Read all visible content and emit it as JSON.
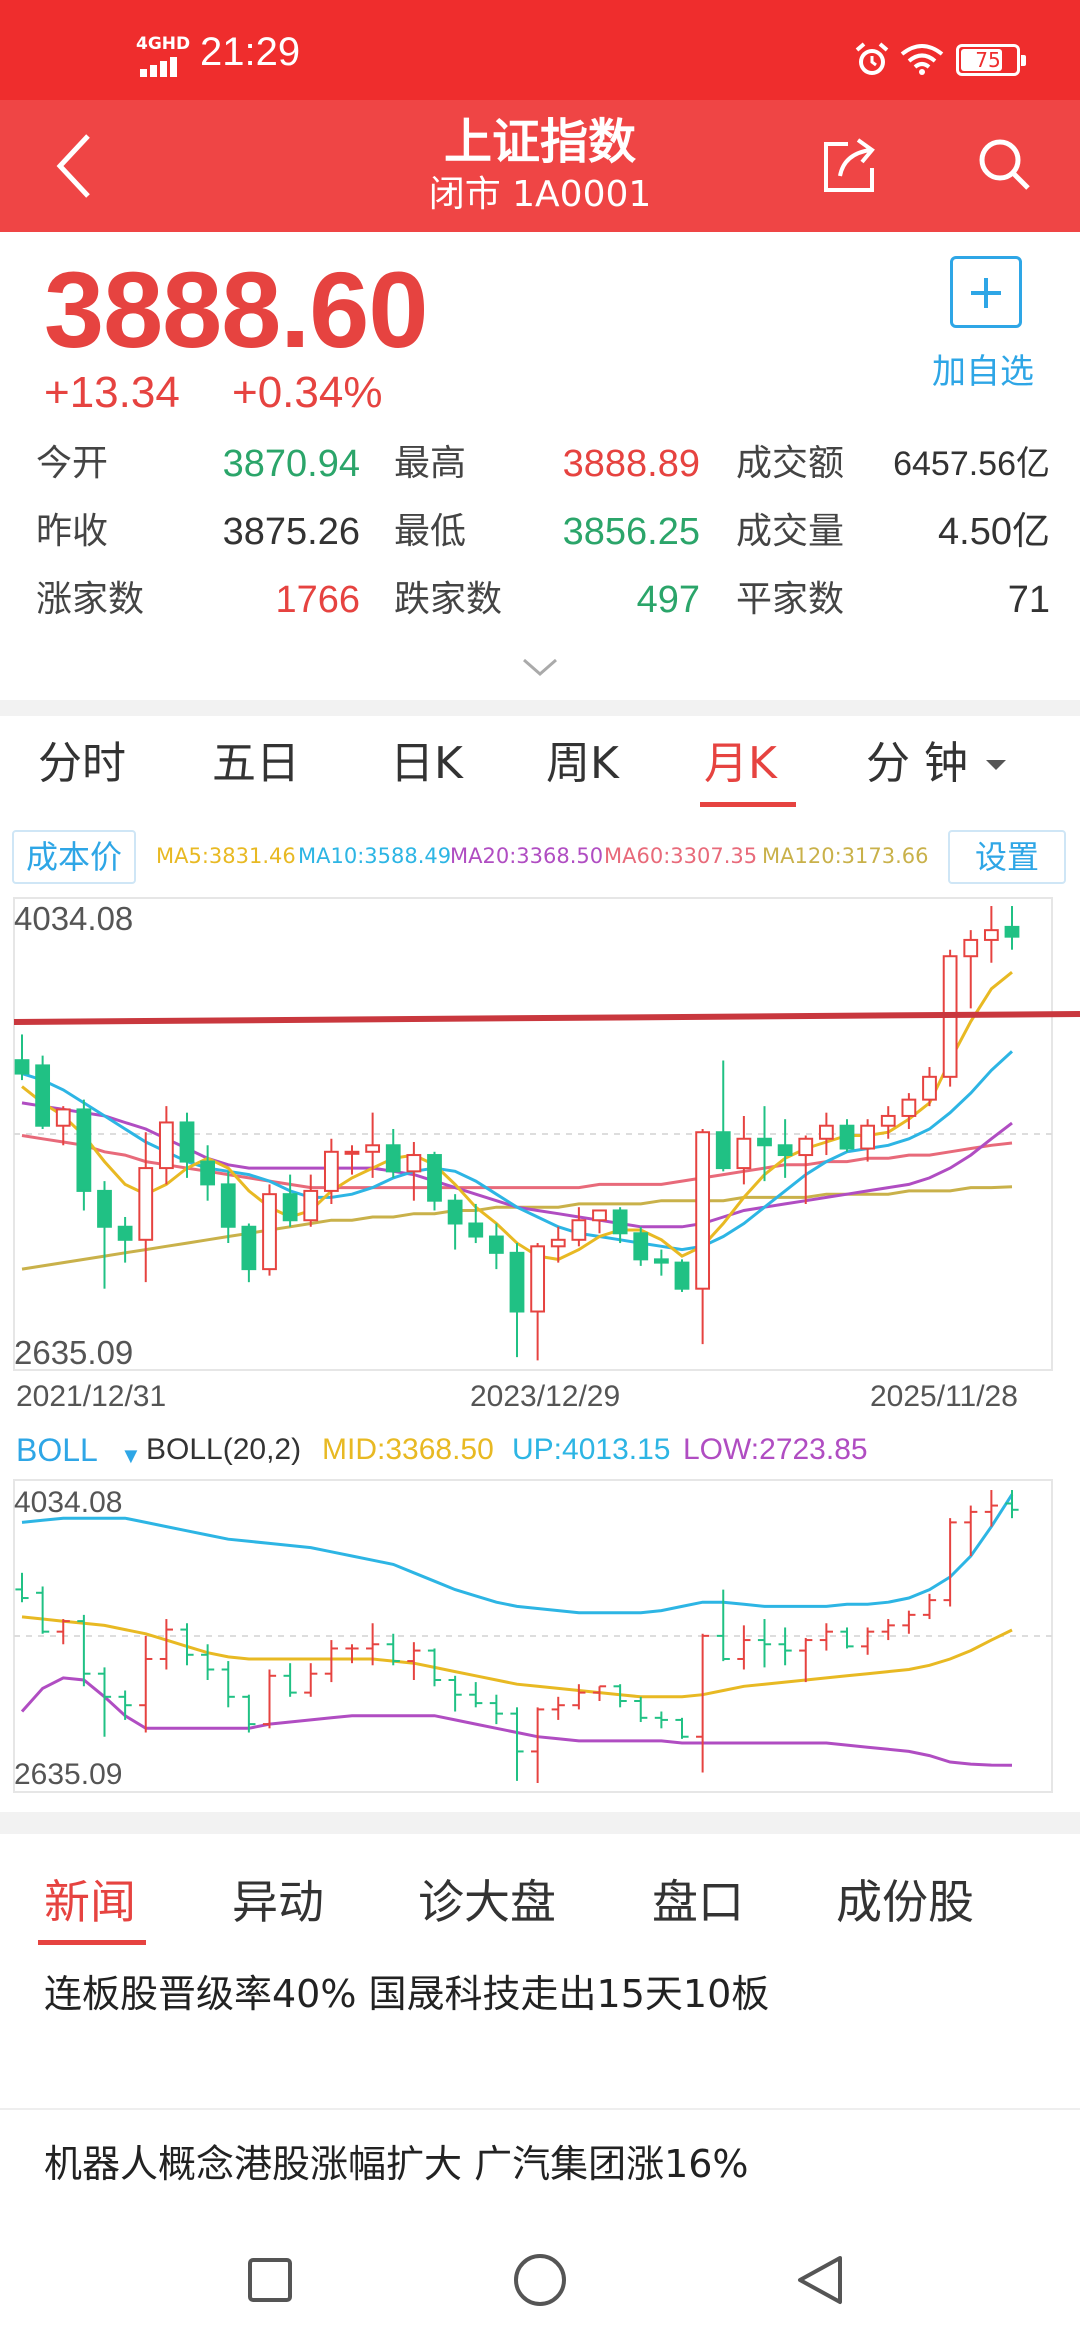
{
  "status_bar": {
    "network": "4GHD",
    "time": "21:29",
    "battery": "75",
    "battery_level": 0.75
  },
  "header": {
    "title": "上证指数",
    "subtitle": "闭市 1A0001"
  },
  "quote": {
    "price": "3888.60",
    "change": "+13.34",
    "change_pct": "+0.34%",
    "add_watch_label": "加自选",
    "stats": [
      [
        {
          "label": "今开",
          "value": "3870.94",
          "color": "green"
        },
        {
          "label": "最高",
          "value": "3888.89",
          "color": "red"
        },
        {
          "label": "成交额",
          "value": "6457.56亿",
          "color": "dark"
        }
      ],
      [
        {
          "label": "昨收",
          "value": "3875.26",
          "color": "dark"
        },
        {
          "label": "最低",
          "value": "3856.25",
          "color": "green"
        },
        {
          "label": "成交量",
          "value": "4.50亿",
          "color": "dark"
        }
      ],
      [
        {
          "label": "涨家数",
          "value": "1766",
          "color": "red"
        },
        {
          "label": "跌家数",
          "value": "497",
          "color": "green"
        },
        {
          "label": "平家数",
          "value": "71",
          "color": "dark"
        }
      ]
    ]
  },
  "period_tabs": [
    "分时",
    "五日",
    "日K",
    "周K",
    "月K",
    "分 钟"
  ],
  "active_period": "月K",
  "ma_row": {
    "cost_button": "成本价",
    "settings_button": "设置",
    "ma": [
      {
        "text": "MA5:3831.46",
        "color": "#e8b923"
      },
      {
        "text": "MA10:3588.49",
        "color": "#2db5e4"
      },
      {
        "text": "MA20:3368.50",
        "color": "#b04dc2"
      },
      {
        "text": "MA60:3307.35",
        "color": "#e86a7a"
      },
      {
        "text": "MA120:3173.66",
        "color": "#c9b14a"
      }
    ]
  },
  "kline_chart": {
    "y_max_label": "4034.08",
    "y_min_label": "2635.09",
    "x_labels": [
      "2021/12/31",
      "2023/12/29",
      "2025/11/28"
    ]
  },
  "boll_row": {
    "name": "BOLL",
    "params": "BOLL(20,2)",
    "mid": "MID:3368.50",
    "up": "UP:4013.15",
    "low": "LOW:2723.85"
  },
  "boll_chart": {
    "y_max_label": "4034.08",
    "y_min_label": "2635.09"
  },
  "news_tabs": [
    "新闻",
    "异动",
    "诊大盘",
    "盘口",
    "成份股"
  ],
  "active_news_tab": "新闻",
  "news": [
    "连板股晋级率40% 国晟科技走出15天10板",
    "机器人概念港股涨幅扩大 广汽集团涨16%"
  ],
  "chart_data": {
    "type": "candlestick",
    "title": "",
    "y_range": [
      2635.09,
      4034.08
    ],
    "x_ticks": [
      "2021/12/31",
      "2023/12/29",
      "2025/11/28"
    ],
    "ma_values": {
      "MA5": 3831.46,
      "MA10": 3588.49,
      "MA20": 3368.5,
      "MA60": 3307.35,
      "MA120": 3173.66
    },
    "boll": {
      "params": "20,2",
      "mid": 3368.5,
      "up": 4013.15,
      "low": 2723.85
    },
    "candles": [
      {
        "o": 3561,
        "h": 3640,
        "l": 3500,
        "c": 3520
      },
      {
        "o": 3545,
        "h": 3575,
        "l": 3350,
        "c": 3360
      },
      {
        "o": 3360,
        "h": 3420,
        "l": 3300,
        "c": 3410
      },
      {
        "o": 3410,
        "h": 3440,
        "l": 3100,
        "c": 3160
      },
      {
        "o": 3160,
        "h": 3190,
        "l": 2860,
        "c": 3050
      },
      {
        "o": 3050,
        "h": 3080,
        "l": 2940,
        "c": 3010
      },
      {
        "o": 3010,
        "h": 3340,
        "l": 2880,
        "c": 3230
      },
      {
        "o": 3230,
        "h": 3420,
        "l": 3180,
        "c": 3370
      },
      {
        "o": 3370,
        "h": 3400,
        "l": 3200,
        "c": 3250
      },
      {
        "o": 3250,
        "h": 3300,
        "l": 3130,
        "c": 3180
      },
      {
        "o": 3180,
        "h": 3220,
        "l": 3000,
        "c": 3050
      },
      {
        "o": 3050,
        "h": 3060,
        "l": 2880,
        "c": 2920
      },
      {
        "o": 2920,
        "h": 3180,
        "l": 2900,
        "c": 3150
      },
      {
        "o": 3150,
        "h": 3210,
        "l": 3050,
        "c": 3070
      },
      {
        "o": 3070,
        "h": 3210,
        "l": 3050,
        "c": 3160
      },
      {
        "o": 3160,
        "h": 3320,
        "l": 3120,
        "c": 3280
      },
      {
        "o": 3280,
        "h": 3300,
        "l": 3210,
        "c": 3280
      },
      {
        "o": 3280,
        "h": 3400,
        "l": 3200,
        "c": 3300
      },
      {
        "o": 3300,
        "h": 3350,
        "l": 3200,
        "c": 3220
      },
      {
        "o": 3220,
        "h": 3310,
        "l": 3130,
        "c": 3270
      },
      {
        "o": 3270,
        "h": 3280,
        "l": 3100,
        "c": 3130
      },
      {
        "o": 3130,
        "h": 3150,
        "l": 2980,
        "c": 3060
      },
      {
        "o": 3060,
        "h": 3120,
        "l": 3000,
        "c": 3020
      },
      {
        "o": 3020,
        "h": 3060,
        "l": 2920,
        "c": 2970
      },
      {
        "o": 2970,
        "h": 3000,
        "l": 2650,
        "c": 2790
      },
      {
        "o": 2790,
        "h": 3000,
        "l": 2640,
        "c": 2990
      },
      {
        "o": 2990,
        "h": 3050,
        "l": 2940,
        "c": 3010
      },
      {
        "o": 3010,
        "h": 3110,
        "l": 2990,
        "c": 3070
      },
      {
        "o": 3070,
        "h": 3100,
        "l": 3030,
        "c": 3100
      },
      {
        "o": 3100,
        "h": 3110,
        "l": 3000,
        "c": 3030
      },
      {
        "o": 3030,
        "h": 3050,
        "l": 2930,
        "c": 2950
      },
      {
        "o": 2950,
        "h": 2980,
        "l": 2900,
        "c": 2940
      },
      {
        "o": 2940,
        "h": 2950,
        "l": 2850,
        "c": 2860
      },
      {
        "o": 2860,
        "h": 3350,
        "l": 2690,
        "c": 3340
      },
      {
        "o": 3340,
        "h": 3560,
        "l": 3220,
        "c": 3230
      },
      {
        "o": 3230,
        "h": 3390,
        "l": 3180,
        "c": 3320
      },
      {
        "o": 3320,
        "h": 3420,
        "l": 3190,
        "c": 3300
      },
      {
        "o": 3300,
        "h": 3380,
        "l": 3200,
        "c": 3270
      },
      {
        "o": 3270,
        "h": 3330,
        "l": 3120,
        "c": 3320
      },
      {
        "o": 3320,
        "h": 3400,
        "l": 3270,
        "c": 3360
      },
      {
        "o": 3360,
        "h": 3380,
        "l": 3280,
        "c": 3290
      },
      {
        "o": 3290,
        "h": 3380,
        "l": 3250,
        "c": 3360
      },
      {
        "o": 3360,
        "h": 3420,
        "l": 3320,
        "c": 3390
      },
      {
        "o": 3390,
        "h": 3460,
        "l": 3350,
        "c": 3440
      },
      {
        "o": 3440,
        "h": 3540,
        "l": 3420,
        "c": 3510
      },
      {
        "o": 3510,
        "h": 3900,
        "l": 3480,
        "c": 3880
      },
      {
        "o": 3880,
        "h": 3960,
        "l": 3720,
        "c": 3930
      },
      {
        "o": 3930,
        "h": 4034,
        "l": 3860,
        "c": 3960
      },
      {
        "o": 3970,
        "h": 4034,
        "l": 3900,
        "c": 3940
      }
    ],
    "ma5": [
      3480,
      3430,
      3390,
      3330,
      3250,
      3180,
      3150,
      3180,
      3230,
      3260,
      3230,
      3160,
      3110,
      3080,
      3100,
      3160,
      3200,
      3230,
      3260,
      3270,
      3240,
      3180,
      3110,
      3060,
      3000,
      2960,
      2950,
      2980,
      3020,
      3040,
      3040,
      3010,
      2960,
      2990,
      3060,
      3140,
      3210,
      3260,
      3290,
      3310,
      3330,
      3330,
      3340,
      3380,
      3430,
      3560,
      3680,
      3780,
      3831
    ],
    "ma10": [
      3520,
      3500,
      3470,
      3430,
      3390,
      3350,
      3310,
      3280,
      3250,
      3230,
      3220,
      3210,
      3190,
      3160,
      3140,
      3140,
      3150,
      3170,
      3200,
      3220,
      3230,
      3220,
      3190,
      3150,
      3110,
      3080,
      3050,
      3030,
      3020,
      3010,
      3000,
      2990,
      2980,
      2990,
      3020,
      3060,
      3110,
      3160,
      3210,
      3250,
      3280,
      3290,
      3300,
      3320,
      3350,
      3400,
      3460,
      3530,
      3588
    ],
    "ma20": [
      3430,
      3420,
      3410,
      3400,
      3390,
      3370,
      3350,
      3320,
      3290,
      3260,
      3240,
      3230,
      3230,
      3230,
      3230,
      3230,
      3230,
      3230,
      3220,
      3210,
      3190,
      3170,
      3150,
      3130,
      3110,
      3100,
      3090,
      3080,
      3070,
      3060,
      3050,
      3050,
      3050,
      3060,
      3080,
      3100,
      3110,
      3120,
      3130,
      3140,
      3150,
      3160,
      3170,
      3180,
      3200,
      3230,
      3270,
      3320,
      3368
    ],
    "ma60": [
      3330,
      3320,
      3310,
      3300,
      3280,
      3270,
      3250,
      3240,
      3230,
      3220,
      3210,
      3200,
      3190,
      3180,
      3170,
      3170,
      3170,
      3170,
      3170,
      3170,
      3170,
      3170,
      3170,
      3170,
      3170,
      3170,
      3170,
      3170,
      3180,
      3180,
      3180,
      3180,
      3190,
      3200,
      3210,
      3220,
      3230,
      3240,
      3240,
      3250,
      3250,
      3260,
      3260,
      3270,
      3270,
      3280,
      3290,
      3300,
      3307
    ],
    "ma120": [
      2920,
      2930,
      2940,
      2950,
      2960,
      2970,
      2980,
      2990,
      3000,
      3010,
      3020,
      3030,
      3040,
      3050,
      3060,
      3070,
      3070,
      3080,
      3080,
      3090,
      3090,
      3100,
      3100,
      3110,
      3110,
      3110,
      3110,
      3120,
      3120,
      3120,
      3120,
      3130,
      3130,
      3130,
      3130,
      3140,
      3140,
      3140,
      3140,
      3150,
      3150,
      3150,
      3150,
      3160,
      3160,
      3160,
      3170,
      3170,
      3173
    ],
    "boll_up": [
      3880,
      3890,
      3900,
      3900,
      3900,
      3900,
      3880,
      3860,
      3840,
      3820,
      3800,
      3790,
      3780,
      3770,
      3760,
      3740,
      3720,
      3700,
      3680,
      3640,
      3600,
      3560,
      3530,
      3500,
      3480,
      3470,
      3460,
      3450,
      3450,
      3450,
      3450,
      3460,
      3480,
      3500,
      3500,
      3490,
      3480,
      3480,
      3480,
      3480,
      3490,
      3490,
      3500,
      3520,
      3560,
      3620,
      3720,
      3860,
      4013
    ],
    "boll_mid": [
      3430,
      3420,
      3410,
      3400,
      3390,
      3370,
      3350,
      3320,
      3290,
      3260,
      3240,
      3230,
      3230,
      3230,
      3230,
      3230,
      3230,
      3230,
      3220,
      3210,
      3190,
      3170,
      3150,
      3130,
      3110,
      3100,
      3090,
      3080,
      3070,
      3060,
      3050,
      3050,
      3050,
      3060,
      3080,
      3100,
      3110,
      3120,
      3130,
      3140,
      3150,
      3160,
      3170,
      3180,
      3200,
      3230,
      3270,
      3320,
      3368
    ],
    "boll_low": [
      2980,
      3090,
      3140,
      3130,
      3050,
      2960,
      2900,
      2900,
      2900,
      2900,
      2900,
      2900,
      2920,
      2930,
      2940,
      2950,
      2960,
      2960,
      2960,
      2960,
      2960,
      2940,
      2920,
      2900,
      2880,
      2860,
      2850,
      2840,
      2840,
      2840,
      2840,
      2840,
      2830,
      2830,
      2830,
      2830,
      2830,
      2830,
      2830,
      2830,
      2820,
      2810,
      2800,
      2790,
      2770,
      2740,
      2730,
      2725,
      2724
    ]
  }
}
